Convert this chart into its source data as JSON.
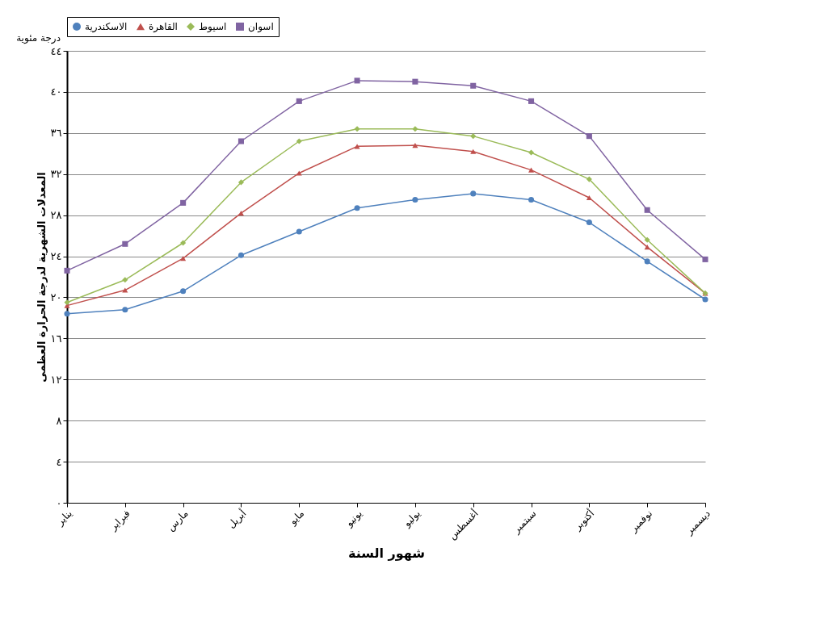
{
  "chart_data": {
    "type": "line",
    "ylabel": "المعدلات الشهرية لدرجة الحرارة العظمى",
    "xlabel": "شهور السنة",
    "annotations": [
      "درجة مئوية"
    ],
    "categories": [
      "يناير",
      "فبراير",
      "مارس",
      "أبريل",
      "مايو",
      "يونيو",
      "يوليو",
      "أغسطس",
      "سبتمبر",
      "أكتوبر",
      "نوفمبر",
      "ديسمبر"
    ],
    "series": [
      {
        "name": "الاسكندرية",
        "color": "#4f81bd",
        "marker": "circle",
        "values": [
          18.4,
          18.8,
          20.6,
          24.1,
          26.4,
          28.7,
          29.5,
          30.1,
          29.5,
          27.3,
          23.5,
          19.8
        ]
      },
      {
        "name": "القاهرة",
        "color": "#c0504d",
        "marker": "triangle",
        "values": [
          19.2,
          20.7,
          23.8,
          28.2,
          32.1,
          34.7,
          34.8,
          34.2,
          32.4,
          29.7,
          24.9,
          20.4
        ]
      },
      {
        "name": "اسيوط",
        "color": "#9bbb59",
        "marker": "diamond",
        "values": [
          19.5,
          21.7,
          25.3,
          31.2,
          35.2,
          36.4,
          36.4,
          35.7,
          34.1,
          31.5,
          25.6,
          20.4
        ]
      },
      {
        "name": "اسوان",
        "color": "#8064a2",
        "marker": "square",
        "values": [
          22.6,
          25.2,
          29.2,
          35.2,
          39.1,
          41.1,
          41.0,
          40.6,
          39.1,
          35.7,
          28.5,
          23.7
        ]
      }
    ],
    "ylim": [
      0,
      44
    ],
    "yticks": [
      {
        "value": 0,
        "label": "٠"
      },
      {
        "value": 4,
        "label": "٤"
      },
      {
        "value": 8,
        "label": "٨"
      },
      {
        "value": 12,
        "label": "١٢"
      },
      {
        "value": 16,
        "label": "١٦"
      },
      {
        "value": 20,
        "label": "٢٠"
      },
      {
        "value": 24,
        "label": "٢٤"
      },
      {
        "value": 28,
        "label": "٢٨"
      },
      {
        "value": 32,
        "label": "٣٢"
      },
      {
        "value": 36,
        "label": "٣٦"
      },
      {
        "value": 40,
        "label": "٤٠"
      },
      {
        "value": 44,
        "label": "٤٤"
      }
    ],
    "grid": "y",
    "legend": "top",
    "line_style": "solid"
  }
}
